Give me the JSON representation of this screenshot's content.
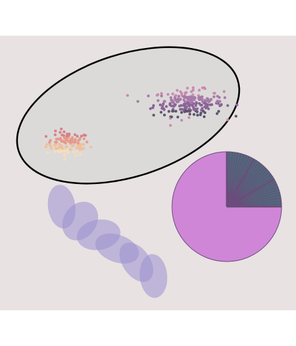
{
  "colors": {
    "figure_background": "#ffffff",
    "axes_background": "#e8e2e2",
    "highlight_ellipse_fill": "#dcdad8",
    "highlight_ellipse_edge": "#000000",
    "blob_fill": "#9b8fd0",
    "pie_large_slice": "#cf86d6",
    "pie_small_slices": "#4f6a7a",
    "pie_edge": "#6b4c7c",
    "cluster_a_palette": [
      "#f6deb8",
      "#efc09a",
      "#e79a8a",
      "#d6808a"
    ],
    "cluster_b_palette": [
      "#c88ab0",
      "#a77aa8",
      "#8a6498",
      "#5e5470"
    ]
  },
  "chart_data": [
    {
      "type": "scatter",
      "title": "",
      "xlabel": "",
      "ylabel": "",
      "axes_visible": false,
      "grid": false,
      "legend": "none",
      "xlim": [
        -2.0,
        10.0
      ],
      "ylim": [
        -2.0,
        10.0
      ],
      "series": [
        {
          "cluster": "A",
          "approx_points": 110,
          "center": [
            0.8,
            2.2
          ],
          "spread": [
            0.55,
            0.45
          ],
          "color_gradient": "cream-to-rose"
        },
        {
          "cluster": "B",
          "approx_points": 220,
          "center": [
            7.0,
            5.3
          ],
          "spread": [
            0.9,
            0.5
          ],
          "color_gradient": "mauve-to-plum"
        }
      ],
      "annotation_shape": {
        "type": "ellipse",
        "center": [
          4.2,
          3.7
        ],
        "width": 10.0,
        "height": 4.1,
        "angle_deg": 18
      }
    },
    {
      "type": "pie",
      "title": "",
      "legend": "none",
      "labels": [],
      "slices": {
        "large_slice_fraction": 0.75,
        "small_slice_count": 30,
        "small_slices_total_fraction": 0.25
      }
    },
    {
      "type": "ellipse-chain",
      "count": 6,
      "opacity": 0.55
    }
  ]
}
